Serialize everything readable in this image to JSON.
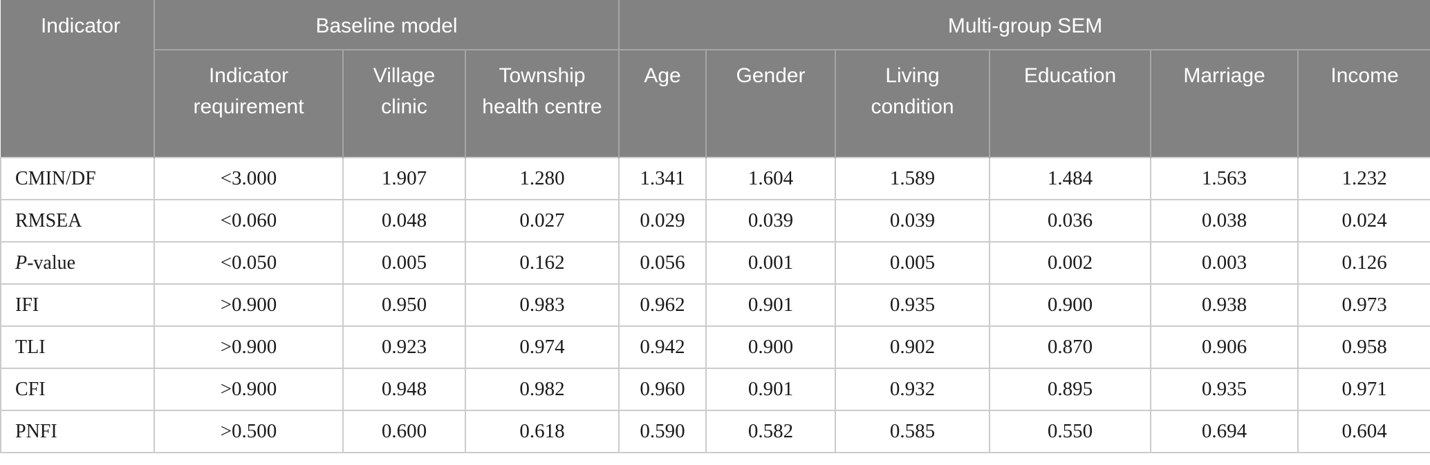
{
  "table": {
    "corner_header": "Indicator",
    "groups": [
      {
        "label": "Baseline model",
        "colspan": 3
      },
      {
        "label": "Multi-group SEM",
        "colspan": 6
      }
    ],
    "columns": [
      "Indicator requirement",
      "Village clinic",
      "Township health centre",
      "Age",
      "Gender",
      "Living condition",
      "Education",
      "Marriage",
      "Income"
    ],
    "rows": [
      {
        "indicator": "CMIN/DF",
        "values": [
          "<3.000",
          "1.907",
          "1.280",
          "1.341",
          "1.604",
          "1.589",
          "1.484",
          "1.563",
          "1.232"
        ]
      },
      {
        "indicator": "RMSEA",
        "values": [
          "<0.060",
          "0.048",
          "0.027",
          "0.029",
          "0.039",
          "0.039",
          "0.036",
          "0.038",
          "0.024"
        ]
      },
      {
        "indicator": "P-value",
        "italic_prefix": "P",
        "label_rest": "-value",
        "values": [
          "<0.050",
          "0.005",
          "0.162",
          "0.056",
          "0.001",
          "0.005",
          "0.002",
          "0.003",
          "0.126"
        ]
      },
      {
        "indicator": "IFI",
        "values": [
          ">0.900",
          "0.950",
          "0.983",
          "0.962",
          "0.901",
          "0.935",
          "0.900",
          "0.938",
          "0.973"
        ]
      },
      {
        "indicator": "TLI",
        "values": [
          ">0.900",
          "0.923",
          "0.974",
          "0.942",
          "0.900",
          "0.902",
          "0.870",
          "0.906",
          "0.958"
        ]
      },
      {
        "indicator": "CFI",
        "values": [
          ">0.900",
          "0.948",
          "0.982",
          "0.960",
          "0.901",
          "0.932",
          "0.895",
          "0.935",
          "0.971"
        ]
      },
      {
        "indicator": "PNFI",
        "values": [
          ">0.500",
          "0.600",
          "0.618",
          "0.590",
          "0.582",
          "0.585",
          "0.550",
          "0.694",
          "0.604"
        ]
      }
    ],
    "colors": {
      "header_bg": "#828282",
      "header_text": "#ffffff",
      "body_text": "#1a1a1a",
      "body_border": "#cbcbcb",
      "header_border": "#a6a6a6"
    }
  }
}
